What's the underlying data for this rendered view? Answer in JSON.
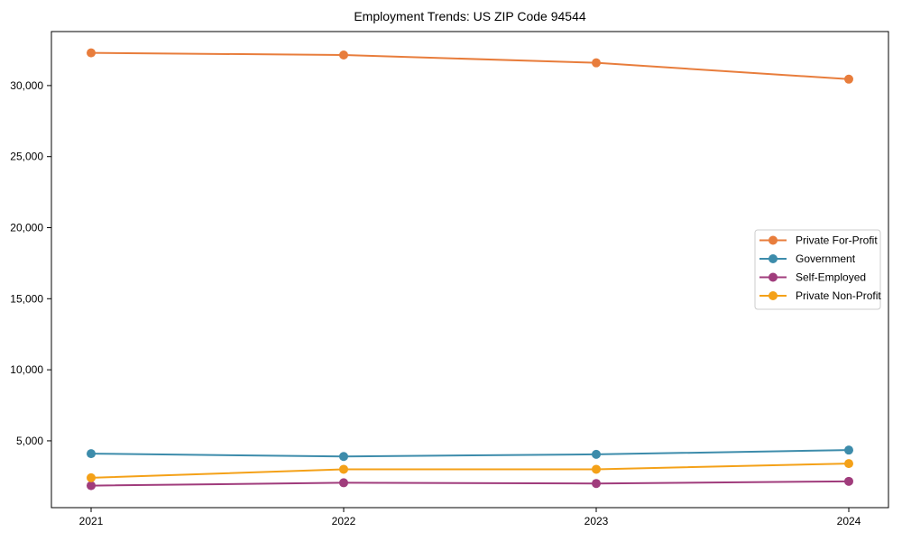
{
  "title": "Employment Trends: US ZIP Code 94544",
  "chart_data": {
    "type": "line",
    "title": "Employment Trends: US ZIP Code 94544",
    "xlabel": "",
    "ylabel": "",
    "categories": [
      "2021",
      "2022",
      "2023",
      "2024"
    ],
    "series": [
      {
        "name": "Private For-Profit",
        "color": "#e87d3c",
        "values": [
          32300,
          32150,
          31600,
          30450
        ]
      },
      {
        "name": "Government",
        "color": "#3d8cab",
        "values": [
          4100,
          3900,
          4050,
          4350
        ]
      },
      {
        "name": "Self-Employed",
        "color": "#a03c7c",
        "values": [
          1850,
          2050,
          2000,
          2150
        ]
      },
      {
        "name": "Private Non-Profit",
        "color": "#f4a118",
        "values": [
          2400,
          3000,
          3000,
          3400
        ]
      }
    ],
    "yticks": [
      5000,
      10000,
      15000,
      20000,
      25000,
      30000
    ],
    "ylim": [
      300,
      33800
    ],
    "grid": false,
    "legend_position": "center-right",
    "legend_border_color": "#cccccc",
    "axis_color": "#000000",
    "marker": "circle"
  }
}
